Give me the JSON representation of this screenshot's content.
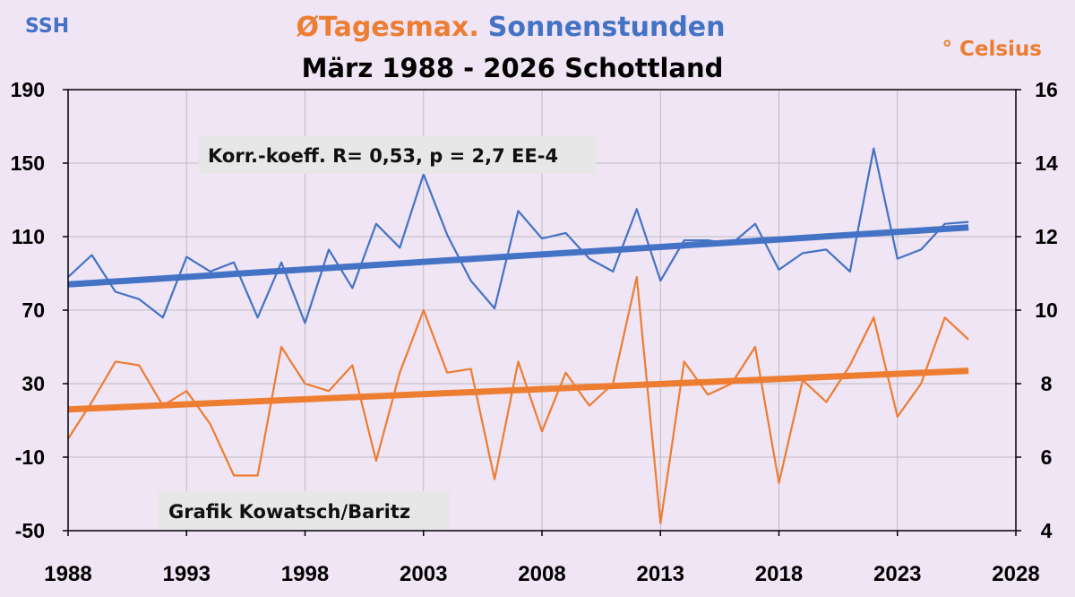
{
  "chart_data": {
    "type": "line",
    "title_part1": "ØTagesmax.",
    "title_part2": "Sonnenstunden",
    "subtitle": "März 1988 - 2026 Schottland",
    "left_axis_label": "SSH",
    "right_axis_label": "° Celsius",
    "correlation_label": "Korr.-koeff. R= 0,53, p = 2,7 EE-4",
    "credit_label": "Grafik Kowatsch/Baritz",
    "x_ticks": [
      "1988",
      "1993",
      "1998",
      "2003",
      "2008",
      "2013",
      "2018",
      "2023",
      "2028"
    ],
    "y_left_ticks": [
      "190",
      "150",
      "110",
      "70",
      "30",
      "-10",
      "-50"
    ],
    "y_right_ticks": [
      "16",
      "14",
      "12",
      "10",
      "8",
      "6",
      "4"
    ],
    "xlim": [
      1988,
      2028
    ],
    "ylim_left": [
      -50,
      190
    ],
    "ylim_right": [
      4,
      16
    ],
    "grid": true,
    "x": [
      1988,
      1989,
      1990,
      1991,
      1992,
      1993,
      1994,
      1995,
      1996,
      1997,
      1998,
      1999,
      2000,
      2001,
      2002,
      2003,
      2004,
      2005,
      2006,
      2007,
      2008,
      2009,
      2010,
      2011,
      2012,
      2013,
      2014,
      2015,
      2016,
      2017,
      2018,
      2019,
      2020,
      2021,
      2022,
      2023,
      2024,
      2025,
      2026
    ],
    "series": [
      {
        "name": "Sonnenstunden",
        "axis": "left",
        "color": "#4472c4",
        "values": [
          88,
          100,
          80,
          76,
          66,
          99,
          91,
          96,
          66,
          96,
          63,
          103,
          82,
          117,
          104,
          144,
          111,
          86,
          71,
          124,
          109,
          112,
          98,
          91,
          125,
          86,
          108,
          108,
          106,
          117,
          92,
          101,
          103,
          91,
          158,
          98,
          103,
          117,
          118
        ],
        "trend": [
          84,
          115
        ]
      },
      {
        "name": "ØTagesmax.",
        "axis": "right",
        "color": "#ed7d31",
        "values": [
          6.5,
          7.5,
          8.6,
          8.5,
          7.4,
          7.8,
          6.9,
          5.5,
          5.5,
          9.0,
          8.0,
          7.8,
          8.5,
          5.9,
          8.3,
          10.0,
          8.3,
          8.4,
          5.4,
          8.6,
          6.7,
          8.3,
          7.4,
          8.0,
          10.9,
          4.2,
          8.6,
          7.7,
          8.0,
          9.0,
          5.3,
          8.1,
          7.5,
          8.5,
          9.8,
          7.1,
          8.0,
          9.8,
          9.2
        ],
        "trend": [
          7.3,
          8.35
        ]
      }
    ]
  }
}
